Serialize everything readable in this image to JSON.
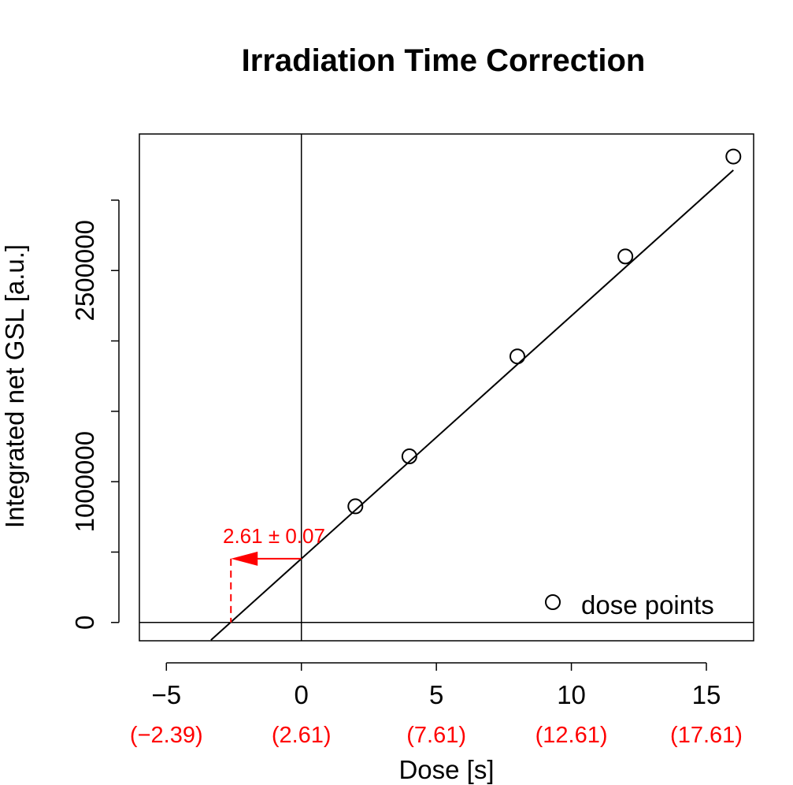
{
  "chart_data": {
    "type": "scatter",
    "title": "Irradiation Time Correction",
    "xlabel": "Dose [s]",
    "ylabel": "Integrated net GSL [a.u.]",
    "xlim": [
      -6,
      16.75
    ],
    "ylim": [
      -130000,
      3470000
    ],
    "x_ticks": [
      -5,
      0,
      5,
      10,
      15
    ],
    "x_tick_labels": [
      "−5",
      "0",
      "5",
      "10",
      "15"
    ],
    "x_corrected_labels": [
      "(−2.39)",
      "(2.61)",
      "(7.61)",
      "(12.61)",
      "(17.61)"
    ],
    "y_ticks": [
      0,
      500000,
      1000000,
      1500000,
      2000000,
      2500000,
      3000000
    ],
    "y_tick_labels": [
      "0",
      "",
      "1000000",
      "",
      "",
      "2500000",
      ""
    ],
    "series": [
      {
        "name": "dose points",
        "x": [
          2,
          4,
          8,
          12,
          16
        ],
        "y": [
          825000,
          1180000,
          1890000,
          2600000,
          3310000
        ]
      }
    ],
    "fit_line": {
      "slope": 172500,
      "intercept": 453000,
      "x_range": [
        -3.35,
        16
      ]
    },
    "reference_lines": {
      "h": 0,
      "v": 0
    },
    "annotation": {
      "text": "2.61 ± 0.07",
      "value": -2.61,
      "y_level": 453000
    },
    "legend": {
      "position": "bottom-right"
    },
    "colors": {
      "axis": "#000000",
      "annotation": "#ff0000",
      "background": "#ffffff"
    },
    "grid": false
  }
}
